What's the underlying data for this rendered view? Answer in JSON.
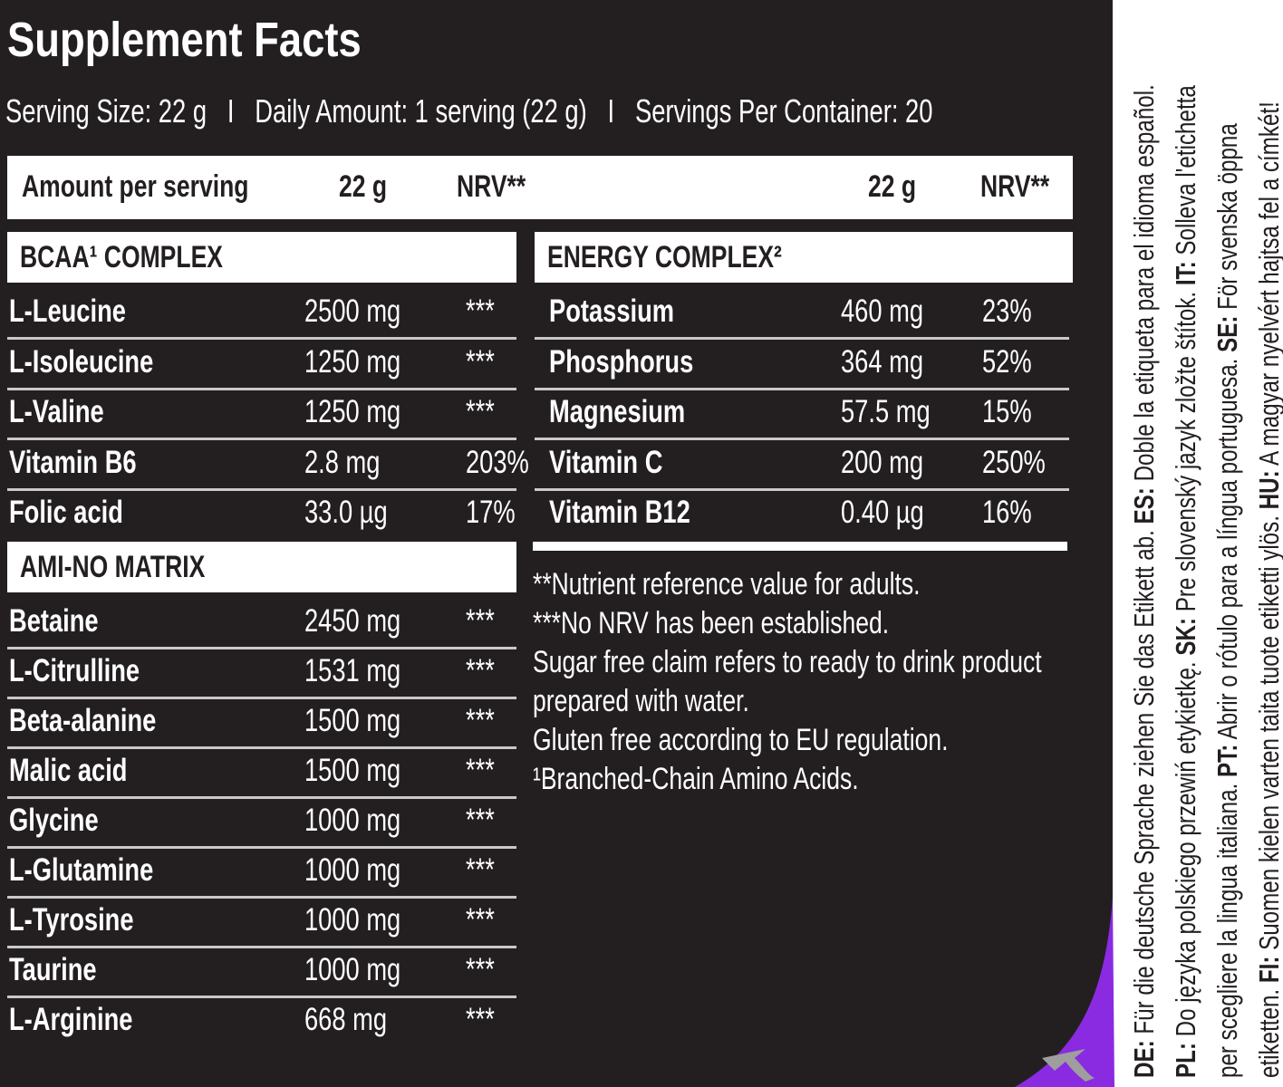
{
  "title": "Supplement Facts",
  "serving_info": "Serving Size: 22 g   I   Daily Amount: 1 serving (22 g)   I   Servings Per Container: 20",
  "header": {
    "amount_label": "Amount per serving",
    "col_amount_left": "22 g",
    "col_nrv_left": "NRV**",
    "col_amount_right": "22 g",
    "col_nrv_right": "NRV**"
  },
  "bcaa": {
    "title": "BCAA¹ COMPLEX",
    "rows": [
      {
        "name": "L-Leucine",
        "amount": "2500 mg",
        "nrv": "***"
      },
      {
        "name": "L-Isoleucine",
        "amount": "1250 mg",
        "nrv": "***"
      },
      {
        "name": "L-Valine",
        "amount": "1250 mg",
        "nrv": "***"
      },
      {
        "name": "Vitamin B6",
        "amount": "2.8 mg",
        "nrv": "203%"
      },
      {
        "name": "Folic acid",
        "amount": "33.0 µg",
        "nrv": "17%"
      }
    ]
  },
  "amino": {
    "title": "AMI-NO MATRIX",
    "rows": [
      {
        "name": "Betaine",
        "amount": "2450 mg",
        "nrv": "***"
      },
      {
        "name": "L-Citrulline",
        "amount": "1531 mg",
        "nrv": "***"
      },
      {
        "name": "Beta-alanine",
        "amount": "1500 mg",
        "nrv": "***"
      },
      {
        "name": "Malic acid",
        "amount": "1500 mg",
        "nrv": "***"
      },
      {
        "name": "Glycine",
        "amount": "1000 mg",
        "nrv": "***"
      },
      {
        "name": "L-Glutamine",
        "amount": "1000 mg",
        "nrv": "***"
      },
      {
        "name": "L-Tyrosine",
        "amount": "1000 mg",
        "nrv": "***"
      },
      {
        "name": "Taurine",
        "amount": "1000 mg",
        "nrv": "***"
      },
      {
        "name": "L-Arginine",
        "amount": "668 mg",
        "nrv": "***"
      }
    ]
  },
  "energy": {
    "title": "ENERGY COMPLEX²",
    "rows": [
      {
        "name": "Potassium",
        "amount": "460 mg",
        "nrv": "23%"
      },
      {
        "name": "Phosphorus",
        "amount": "364 mg",
        "nrv": "52%"
      },
      {
        "name": "Magnesium",
        "amount": "57.5 mg",
        "nrv": "15%"
      },
      {
        "name": "Vitamin C",
        "amount": "200 mg",
        "nrv": "250%"
      },
      {
        "name": "Vitamin B12",
        "amount": "0.40 µg",
        "nrv": "16%"
      }
    ]
  },
  "footnotes": [
    "**Nutrient reference value for adults.",
    "***No NRV has been established.",
    "Sugar free claim refers to ready to drink product",
    "prepared with water.",
    "Gluten free according to EU regulation.",
    "¹Branched-Chain Amino Acids."
  ],
  "languages": {
    "line1": [
      {
        "code": "DE:",
        "text": " Für die deutsche Sprache ziehen Sie das Etikett ab. "
      },
      {
        "code": "ES:",
        "text": " Doble la etiqueta para el idioma español."
      }
    ],
    "line2": [
      {
        "code": "PL:",
        "text": " Do języka polskiego przewiń etykietkę. "
      },
      {
        "code": "SK:",
        "text": " Pre slovenský jazyk zložte štítok. "
      },
      {
        "code": "IT:",
        "text": " Solleva l'etichetta"
      }
    ],
    "line3": [
      {
        "code": "",
        "text": "per scegliere la lingua italiana. "
      },
      {
        "code": "PT:",
        "text": " Abrir o rótulo para a língua portuguesa. "
      },
      {
        "code": "SE:",
        "text": " För svenska öppna"
      }
    ],
    "line4": [
      {
        "code": "",
        "text": "etiketten. "
      },
      {
        "code": "FI:",
        "text": " Suomen kielen varten taita tuote etiketti ylös. "
      },
      {
        "code": "HU:",
        "text": " A magyar nyelvért hajtsa fel a címkét!"
      }
    ]
  },
  "accent_color": "#8a2be2",
  "icons": {
    "peel": "peel-arrow-icon"
  }
}
